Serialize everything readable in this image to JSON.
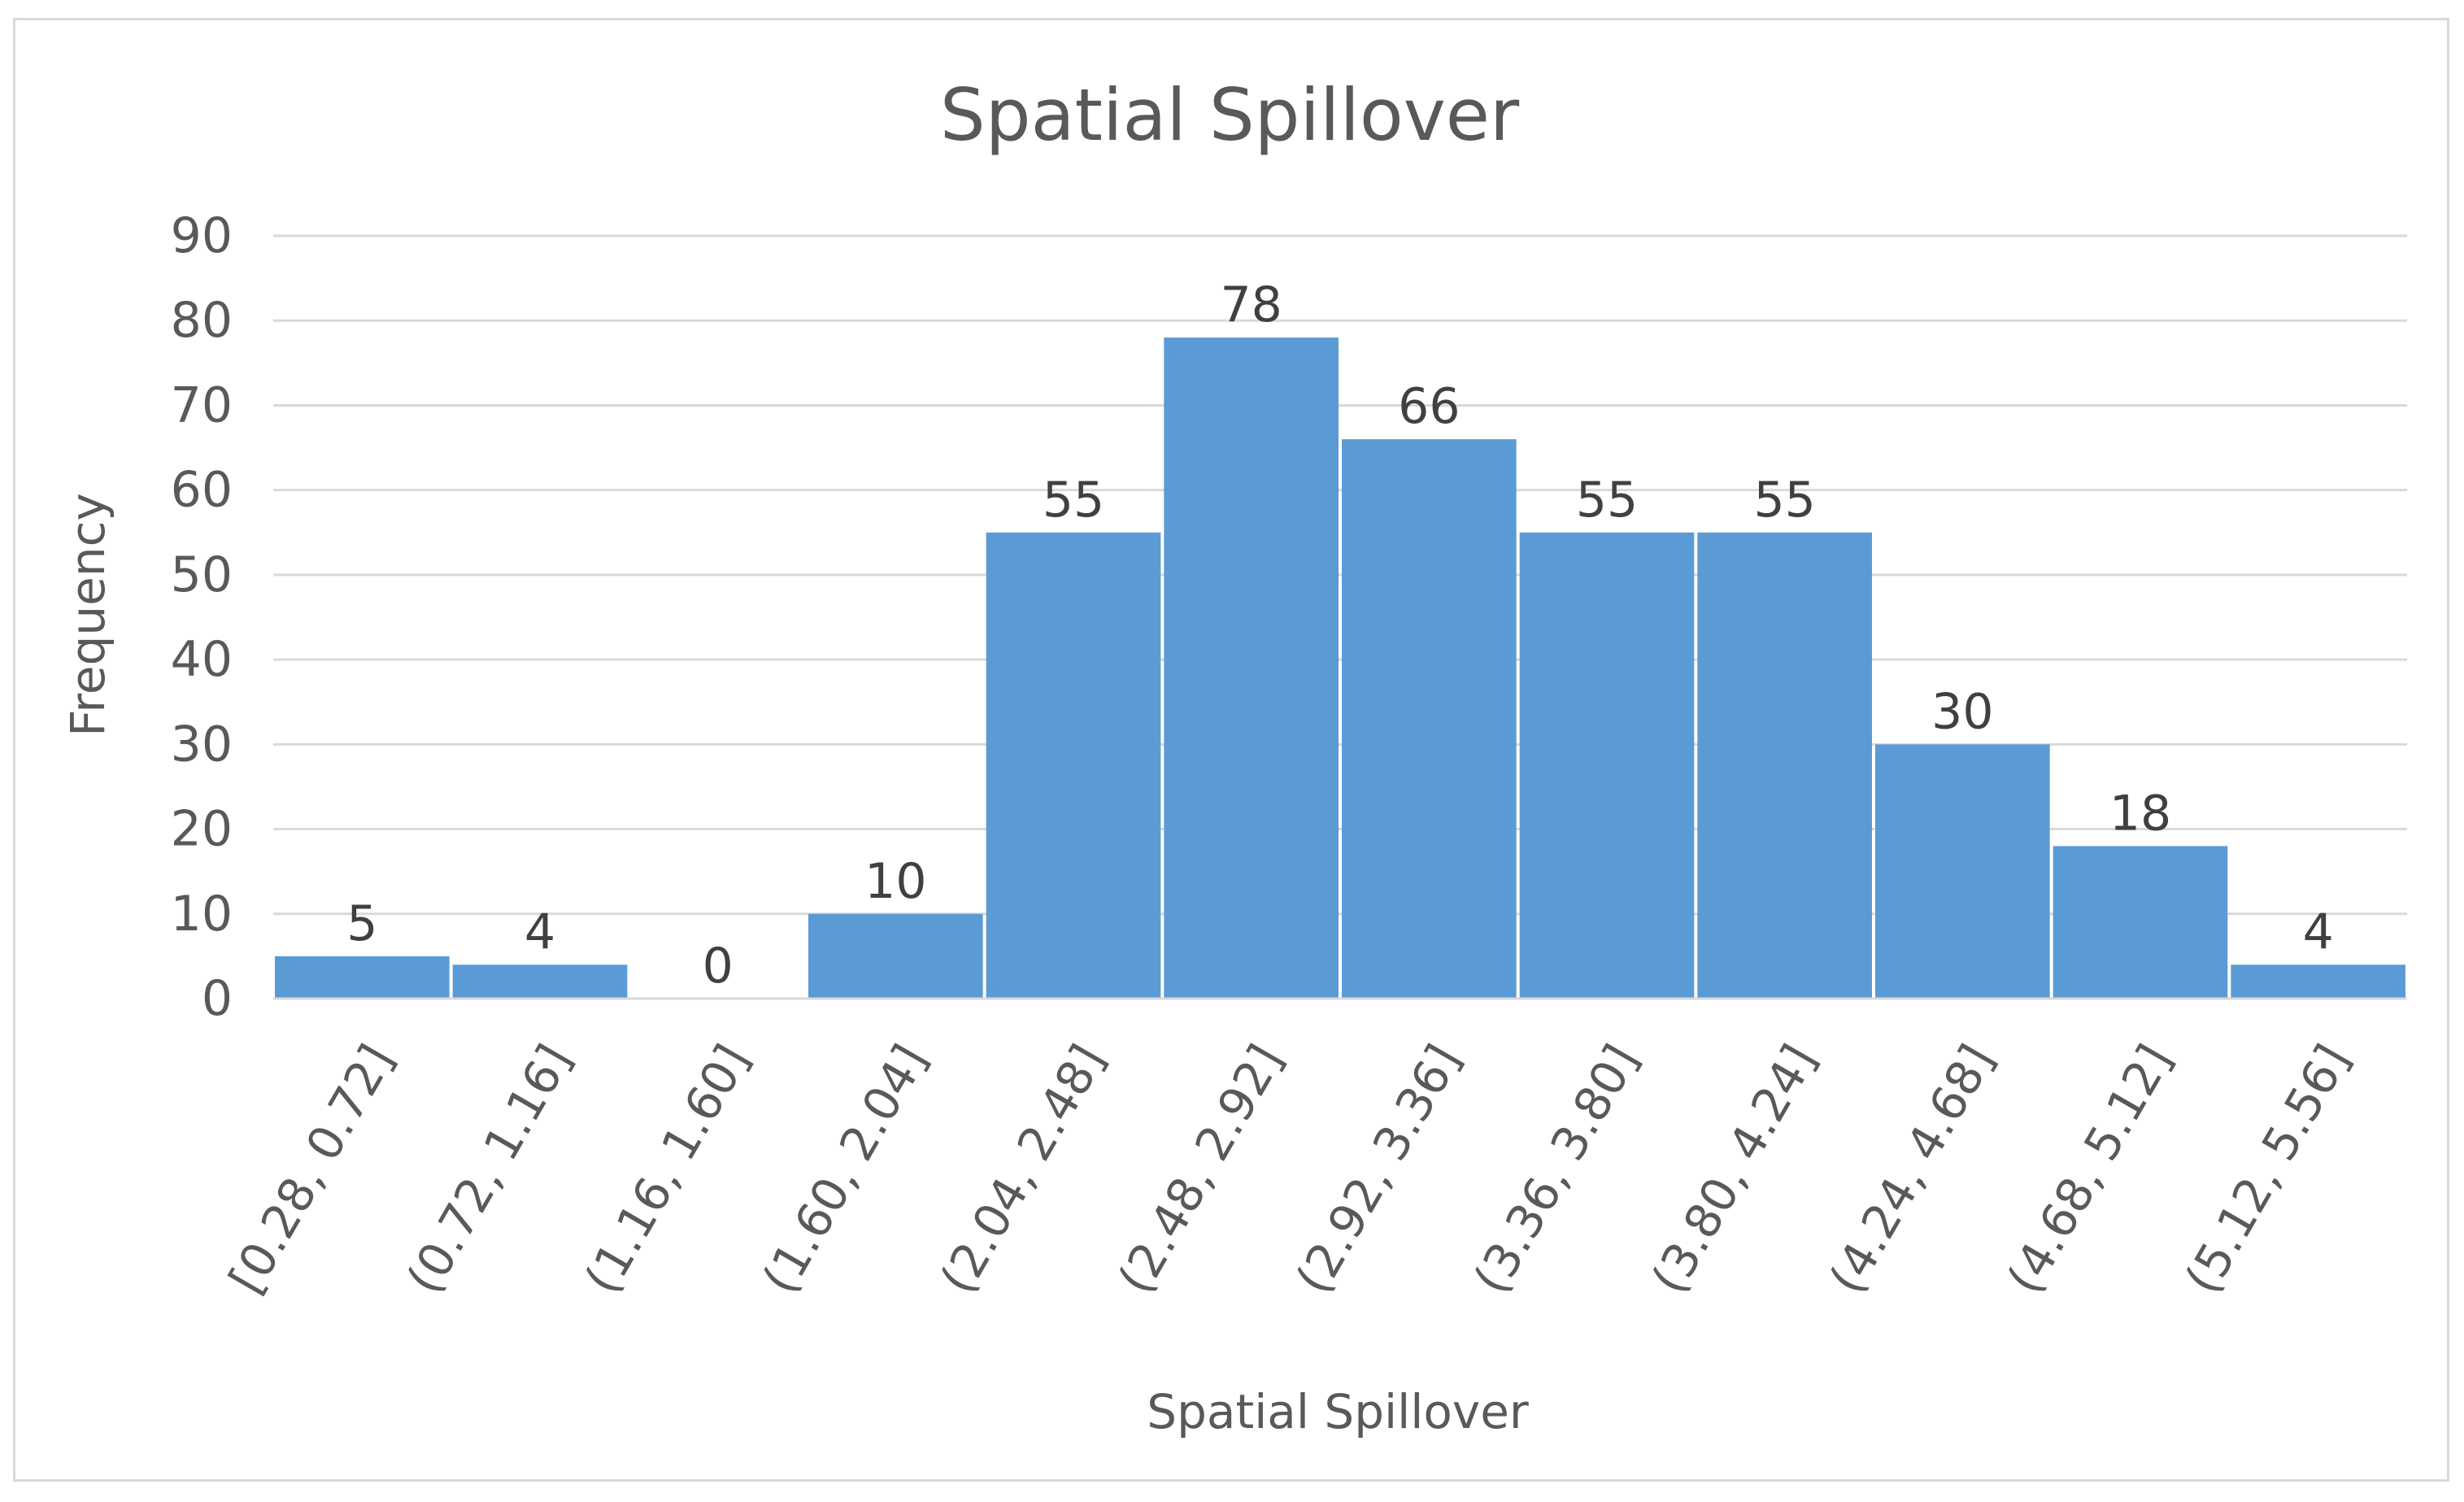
{
  "chart_data": {
    "type": "bar",
    "title": "Spatial Spillover",
    "xlabel": "Spatial Spillover",
    "ylabel": "Frequency",
    "ylim": [
      0,
      90
    ],
    "yticks": [
      0,
      10,
      20,
      30,
      40,
      50,
      60,
      70,
      80,
      90
    ],
    "grid": true,
    "legend": "none",
    "bar_color": "#5b9bd5",
    "categories": [
      "[0.28, 0.72]",
      "(0.72, 1.16]",
      "(1.16, 1.60]",
      "(1.60, 2.04]",
      "(2.04, 2.48]",
      "(2.48, 2.92]",
      "(2.92, 3.36]",
      "(3.36, 3.80]",
      "(3.80, 4.24]",
      "(4.24, 4.68]",
      "(4.68, 5.12]",
      "(5.12, 5.56]"
    ],
    "values": [
      5,
      4,
      0,
      10,
      55,
      78,
      66,
      55,
      55,
      30,
      18,
      4
    ]
  }
}
